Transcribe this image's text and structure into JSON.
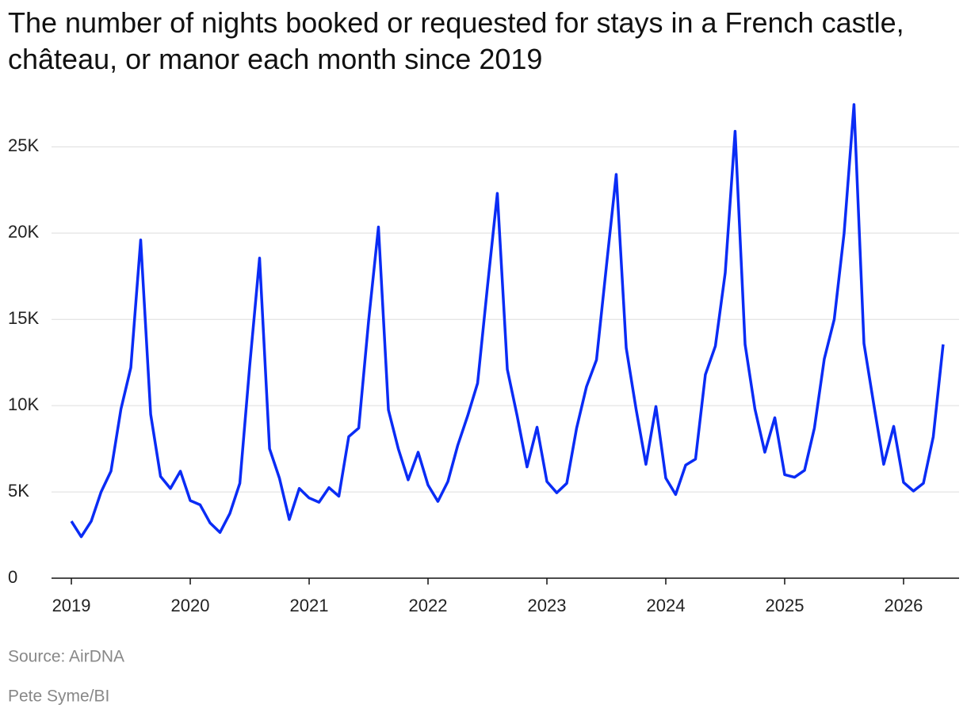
{
  "chart_data": {
    "type": "line",
    "title": "The number of nights booked or requested for stays in a French castle, château, or manor each month since 2019",
    "source": "Source: AirDNA",
    "credit": "Pete Syme/BI",
    "x": [
      2019,
      2019.083,
      2019.167,
      2019.25,
      2019.333,
      2019.417,
      2019.5,
      2019.583,
      2019.667,
      2019.75,
      2019.833,
      2019.917,
      2020,
      2020.083,
      2020.167,
      2020.25,
      2020.333,
      2020.417,
      2020.5,
      2020.583,
      2020.667,
      2020.75,
      2020.833,
      2020.917,
      2021,
      2021.083,
      2021.167,
      2021.25,
      2021.333,
      2021.417,
      2021.5,
      2021.583,
      2021.667,
      2021.75,
      2021.833,
      2021.917,
      2022,
      2022.083,
      2022.167,
      2022.25,
      2022.333,
      2022.417,
      2022.5,
      2022.583,
      2022.667,
      2022.75,
      2022.833,
      2022.917,
      2023,
      2023.083,
      2023.167,
      2023.25,
      2023.333,
      2023.417,
      2023.5,
      2023.583,
      2023.667,
      2023.75,
      2023.833,
      2023.917,
      2024,
      2024.083,
      2024.167,
      2024.25,
      2024.333,
      2024.417,
      2024.5,
      2024.583,
      2024.667,
      2024.75,
      2024.833,
      2024.917,
      2025,
      2025.083,
      2025.167,
      2025.25,
      2025.333,
      2025.417,
      2025.5,
      2025.583,
      2025.667,
      2025.75,
      2025.833,
      2025.917,
      2026,
      2026.083,
      2026.167,
      2026.25,
      2026.333
    ],
    "values": [
      3300,
      2400,
      3300,
      5000,
      6200,
      9800,
      12200,
      19600,
      9500,
      5900,
      5200,
      6200,
      4500,
      4250,
      3200,
      2650,
      3750,
      5500,
      12300,
      18550,
      7500,
      5800,
      3400,
      5200,
      4650,
      4400,
      5250,
      4750,
      8200,
      8700,
      14900,
      20350,
      9750,
      7500,
      5700,
      7300,
      5400,
      4450,
      5600,
      7700,
      9400,
      11300,
      16900,
      22300,
      12100,
      9400,
      6450,
      8750,
      5600,
      4950,
      5500,
      8700,
      11100,
      12650,
      18050,
      23400,
      13350,
      9800,
      6600,
      9950,
      5800,
      4850,
      6550,
      6900,
      11800,
      13450,
      17700,
      25900,
      13550,
      9800,
      7300,
      9300,
      6000,
      5850,
      6250,
      8700,
      12700,
      15000,
      20000,
      27450,
      13600,
      10050,
      6600,
      8800,
      5550,
      5050,
      5500,
      8200,
      13550
    ],
    "color": "#0a2cf5",
    "xlim": [
      2018.833,
      2026.467
    ],
    "xticks": [
      2019,
      2020,
      2021,
      2022,
      2023,
      2024,
      2025,
      2026
    ],
    "ylim": [
      0,
      28000
    ],
    "yticks": [
      0,
      {
        "value": 5000,
        "label": "5K"
      },
      {
        "value": 10000,
        "label": "10K"
      },
      {
        "value": 15000,
        "label": "15K"
      },
      {
        "value": 20000,
        "label": "20K"
      },
      {
        "value": 25000,
        "label": "25K"
      }
    ],
    "grid": true
  }
}
